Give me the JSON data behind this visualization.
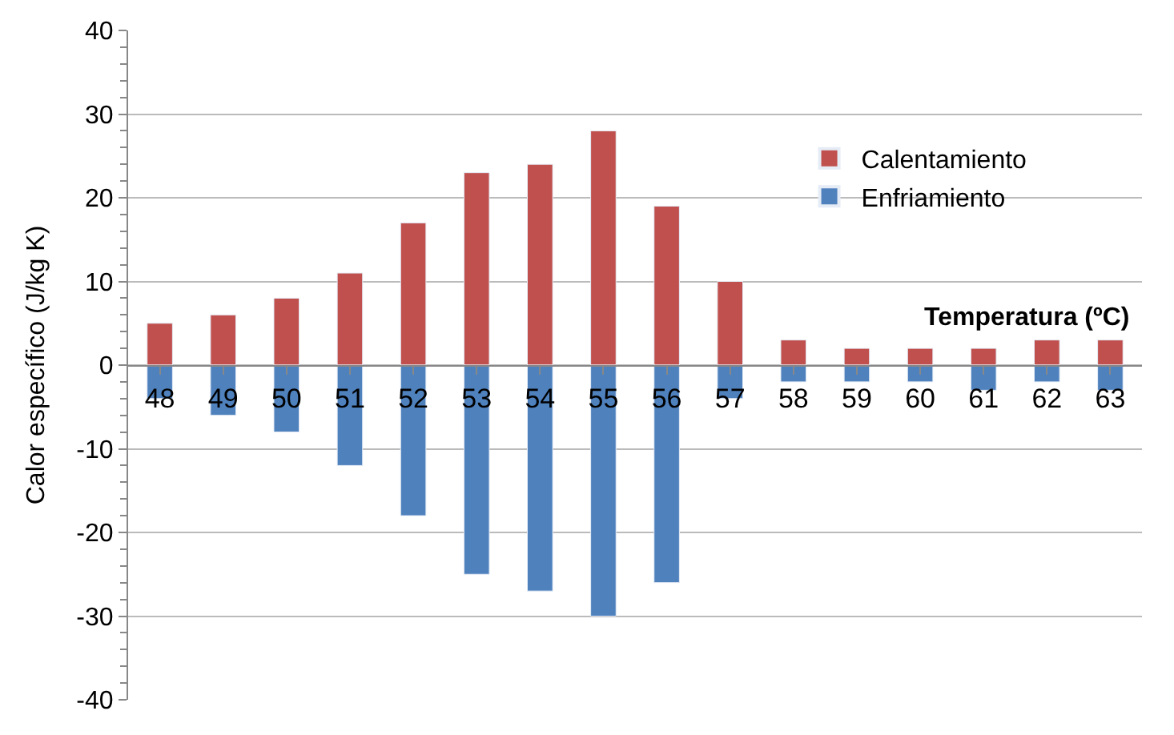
{
  "chart_data": {
    "type": "bar",
    "stacked": true,
    "ylabel": "Calor específico (J/kg K)",
    "xlabel": "Temperatura (ºC)",
    "categories": [
      "48",
      "49",
      "50",
      "51",
      "52",
      "53",
      "54",
      "55",
      "56",
      "57",
      "58",
      "59",
      "60",
      "61",
      "62",
      "63"
    ],
    "series": [
      {
        "name": "Calentamiento",
        "color": "#c0504d",
        "values": [
          5,
          6,
          8,
          11,
          17,
          23,
          24,
          28,
          19,
          10,
          3,
          2,
          2,
          2,
          3,
          3
        ]
      },
      {
        "name": "Enfriamiento",
        "color": "#4f81bd",
        "values": [
          -4,
          -6,
          -8,
          -12,
          -18,
          -25,
          -27,
          -30,
          -26,
          -4,
          -2,
          -2,
          -2,
          -3,
          -2,
          -3
        ]
      }
    ],
    "ylim": [
      -40,
      40
    ],
    "yticks": [
      -40,
      -30,
      -20,
      -10,
      0,
      10,
      20,
      30,
      40
    ],
    "grid": "y",
    "legend": "right"
  }
}
